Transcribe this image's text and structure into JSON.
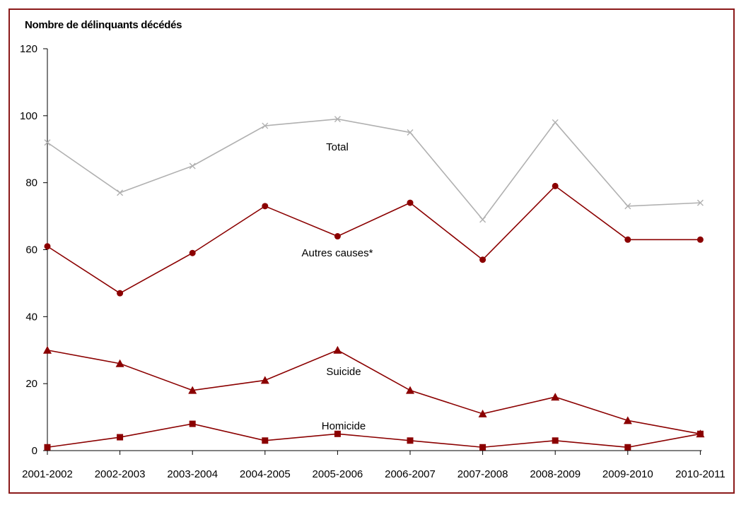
{
  "chart_data": {
    "type": "line",
    "title": "",
    "ylabel": "Nombre de délinquants décédés",
    "xlabel": "",
    "categories": [
      "2001-2002",
      "2002-2003",
      "2003-2004",
      "2004-2005",
      "2005-2006",
      "2006-2007",
      "2007-2008",
      "2008-2009",
      "2009-2010",
      "2010-2011"
    ],
    "ylim": [
      0,
      120
    ],
    "yticks": [
      0,
      20,
      40,
      60,
      80,
      100,
      120
    ],
    "grid": false,
    "legend": "inline labels",
    "series": [
      {
        "name": "Total",
        "marker": "x",
        "color": "#b0b0b0",
        "values": [
          92,
          77,
          85,
          97,
          99,
          95,
          69,
          98,
          73,
          74
        ]
      },
      {
        "name": "Autres causes*",
        "marker": "circle",
        "color": "#8b0000",
        "values": [
          61,
          47,
          59,
          73,
          64,
          74,
          57,
          79,
          63,
          63
        ]
      },
      {
        "name": "Suicide",
        "marker": "triangle",
        "color": "#8b0000",
        "values": [
          30,
          26,
          18,
          21,
          30,
          18,
          11,
          16,
          9,
          5
        ]
      },
      {
        "name": "Homicide",
        "marker": "square",
        "color": "#8b0000",
        "values": [
          1,
          4,
          8,
          3,
          5,
          3,
          1,
          3,
          1,
          5
        ]
      }
    ]
  }
}
